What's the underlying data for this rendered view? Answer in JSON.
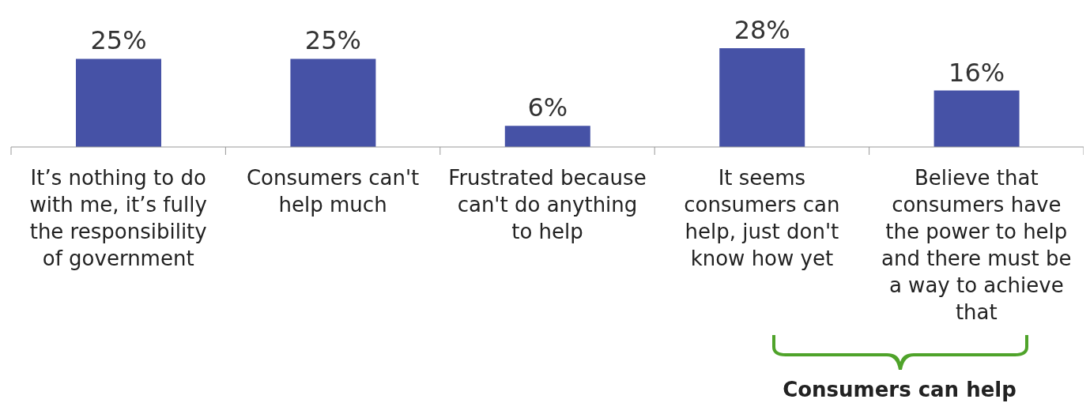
{
  "chart_data": {
    "type": "bar",
    "categories": [
      "It’s nothing to do with me, it’s fully the responsibility of government",
      "Consumers can't help much",
      "Frustrated because can't do anything to help",
      "It seems consumers can help, just don't know how yet",
      "Believe that consumers have the power to help and there must be a way to achieve that"
    ],
    "values": [
      25,
      25,
      6,
      28,
      16
    ],
    "value_labels": [
      "25%",
      "25%",
      "6%",
      "28%",
      "16%"
    ],
    "color": "#4652a6",
    "annotations": [
      "Consumers can help"
    ]
  }
}
